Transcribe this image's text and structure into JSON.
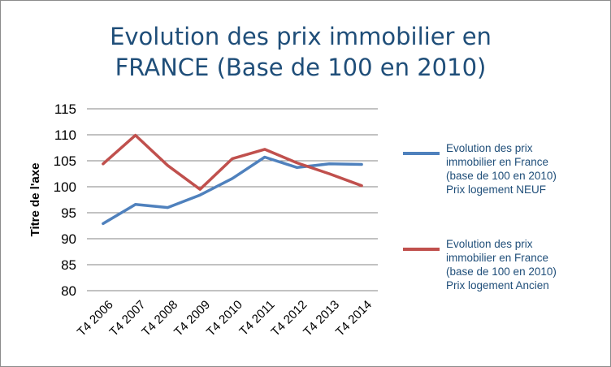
{
  "chart_data": {
    "type": "line",
    "title_line1": "Evolution des prix immobilier en",
    "title_line2": "FRANCE (Base de 100 en 2010)",
    "ylabel": "Titre de l'axe",
    "xlabel": "",
    "ylim": [
      80,
      115
    ],
    "yticks": [
      "80",
      "85",
      "90",
      "95",
      "100",
      "105",
      "110",
      "115"
    ],
    "categories": [
      "T4 2006",
      "T4 2007",
      "T4 2008",
      "T4 2009",
      "T4 2010",
      "T4 2011",
      "T4 2012",
      "T4 2013",
      "T4 2014"
    ],
    "grid": true,
    "legend_position": "right",
    "series": [
      {
        "name": "Evolution des prix immobilier en France (base de 100 en 2010) Prix logement NEUF",
        "color": "#4f81bd",
        "values": [
          92.9,
          96.6,
          96.0,
          98.4,
          101.6,
          105.7,
          103.7,
          104.4,
          104.3
        ]
      },
      {
        "name": "Evolution des prix immobilier en France (base de 100 en 2010) Prix logement Ancien",
        "color": "#c0504d",
        "values": [
          104.4,
          109.9,
          104.1,
          99.5,
          105.4,
          107.2,
          104.6,
          102.5,
          100.2
        ]
      }
    ]
  },
  "legend": {
    "labels": [
      "Evolution des prix\nimmobilier en France\n(base de 100 en 2010)\nPrix logement NEUF",
      "Evolution des prix\nimmobilier en France\n(base de 100 en 2010)\nPrix logement Ancien"
    ]
  }
}
